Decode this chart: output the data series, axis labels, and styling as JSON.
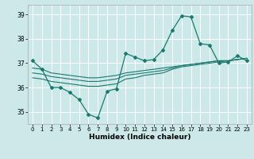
{
  "xlabel": "Humidex (Indice chaleur)",
  "bg_color": "#cce8e8",
  "line_color": "#1a7a6e",
  "grid_color": "#ffffff",
  "x": [
    0,
    1,
    2,
    3,
    4,
    5,
    6,
    7,
    8,
    9,
    10,
    11,
    12,
    13,
    14,
    15,
    16,
    17,
    18,
    19,
    20,
    21,
    22,
    23
  ],
  "line1": [
    37.1,
    36.75,
    36.0,
    36.0,
    35.8,
    35.5,
    34.9,
    34.75,
    35.85,
    35.95,
    37.4,
    37.25,
    37.1,
    37.15,
    37.55,
    38.35,
    38.95,
    38.9,
    37.8,
    37.75,
    37.0,
    37.05,
    37.3,
    37.1
  ],
  "line2": [
    36.8,
    36.75,
    36.6,
    36.55,
    36.5,
    36.45,
    36.4,
    36.4,
    36.45,
    36.5,
    36.6,
    36.65,
    36.7,
    36.75,
    36.8,
    36.85,
    36.9,
    36.95,
    37.0,
    37.05,
    37.1,
    37.1,
    37.15,
    37.2
  ],
  "line3": [
    36.6,
    36.55,
    36.45,
    36.4,
    36.35,
    36.3,
    36.25,
    36.25,
    36.3,
    36.35,
    36.5,
    36.55,
    36.6,
    36.65,
    36.7,
    36.8,
    36.9,
    36.95,
    37.0,
    37.05,
    37.1,
    37.1,
    37.15,
    37.2
  ],
  "line4": [
    36.4,
    36.35,
    36.25,
    36.2,
    36.15,
    36.1,
    36.05,
    36.05,
    36.1,
    36.15,
    36.35,
    36.4,
    36.5,
    36.55,
    36.6,
    36.75,
    36.85,
    36.9,
    36.95,
    37.0,
    37.05,
    37.1,
    37.15,
    37.2
  ],
  "ylim": [
    34.5,
    39.4
  ],
  "yticks": [
    35,
    36,
    37,
    38,
    39
  ],
  "xticks": [
    0,
    1,
    2,
    3,
    4,
    5,
    6,
    7,
    8,
    9,
    10,
    11,
    12,
    13,
    14,
    15,
    16,
    17,
    18,
    19,
    20,
    21,
    22,
    23
  ],
  "tick_fontsize": 5.5,
  "xlabel_fontsize": 6.5
}
